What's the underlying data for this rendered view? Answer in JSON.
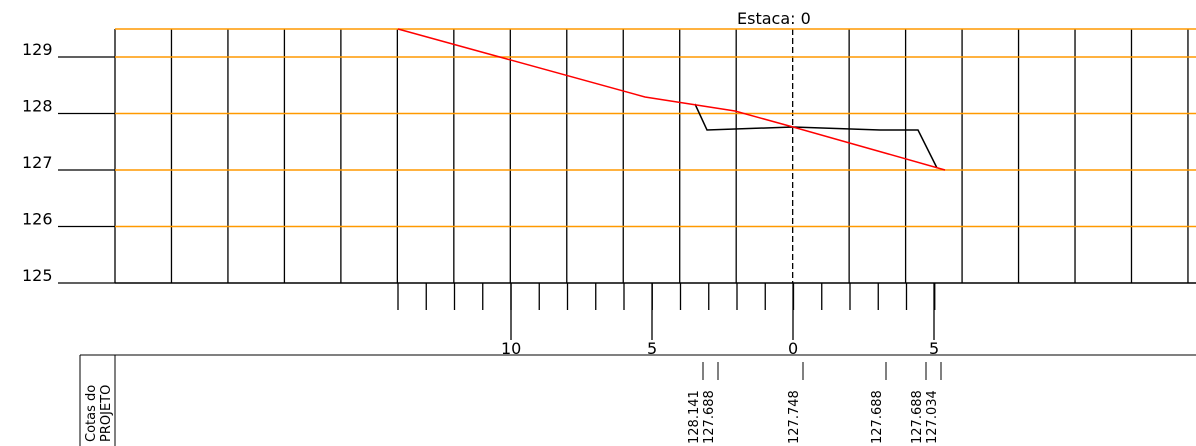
{
  "header": {
    "title": "Estaca: 0"
  },
  "elevation_labels": [
    "129",
    "128",
    "127",
    "126",
    "125"
  ],
  "offset_labels": [
    "10",
    "5",
    "0",
    "5"
  ],
  "table": {
    "row_label": [
      "Cotas do",
      "PROJETO"
    ],
    "values": [
      "128.141",
      "127.688",
      "127.748",
      "127.688",
      "127.688",
      "127.034"
    ]
  }
}
